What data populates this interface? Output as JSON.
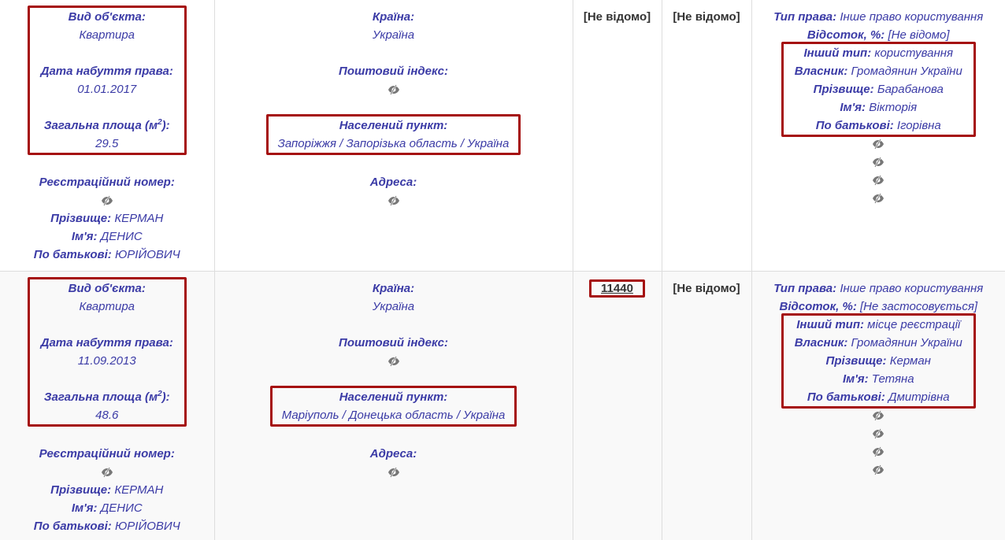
{
  "colors": {
    "text": "#3b3ba6",
    "highlight": "#a50f0f",
    "row_alt": "#f9f9f9"
  },
  "labels": {
    "object_type": "Вид об'єкта:",
    "acquired": "Дата набуття права:",
    "area": "Загальна площа (м",
    "area_sup": "2",
    "area_end": "):",
    "reg_number": "Реєстраційний номер:",
    "surname": "Прізвище:",
    "name": "Ім'я:",
    "patronymic": "По батькові:",
    "country": "Країна:",
    "postal": "Поштовий індекс:",
    "locality": "Населений пункт:",
    "address": "Адреса:",
    "right_type": "Тип права:",
    "percent": "Відсоток, %:",
    "other_type": "Інший тип:",
    "owner": "Власник:"
  },
  "icons": {
    "hidden": "eye-slash-icon"
  },
  "rows": [
    {
      "object_type": "Квартира",
      "acquired": "01.01.2017",
      "area": "29.5",
      "surname": "КЕРМАН",
      "name": "ДЕНИС",
      "patronymic": "ЮРІЙОВИЧ",
      "country": "Україна",
      "locality": "Запоріжжя / Запорізька область / Україна",
      "col3": "[Не відомо]",
      "col4": "[Не відомо]",
      "right_type": "Інше право користування",
      "percent": "[Не відомо]",
      "other_type": "користування",
      "owner": "Громадянин України",
      "r_surname": "Барабанова",
      "r_name": "Вікторія",
      "r_patronymic": "Ігорівна"
    },
    {
      "object_type": "Квартира",
      "acquired": "11.09.2013",
      "area": "48.6",
      "surname": "КЕРМАН",
      "name": "ДЕНИС",
      "patronymic": "ЮРІЙОВИЧ",
      "country": "Україна",
      "locality": "Маріуполь / Донецька область / Україна",
      "col3": "11440",
      "col4": "[Не відомо]",
      "right_type": "Інше право користування",
      "percent": "[Не застосовується]",
      "other_type": "місце реєстрації",
      "owner": "Громадянин України",
      "r_surname": "Керман",
      "r_name": "Тетяна",
      "r_patronymic": "Дмитрівна"
    }
  ]
}
